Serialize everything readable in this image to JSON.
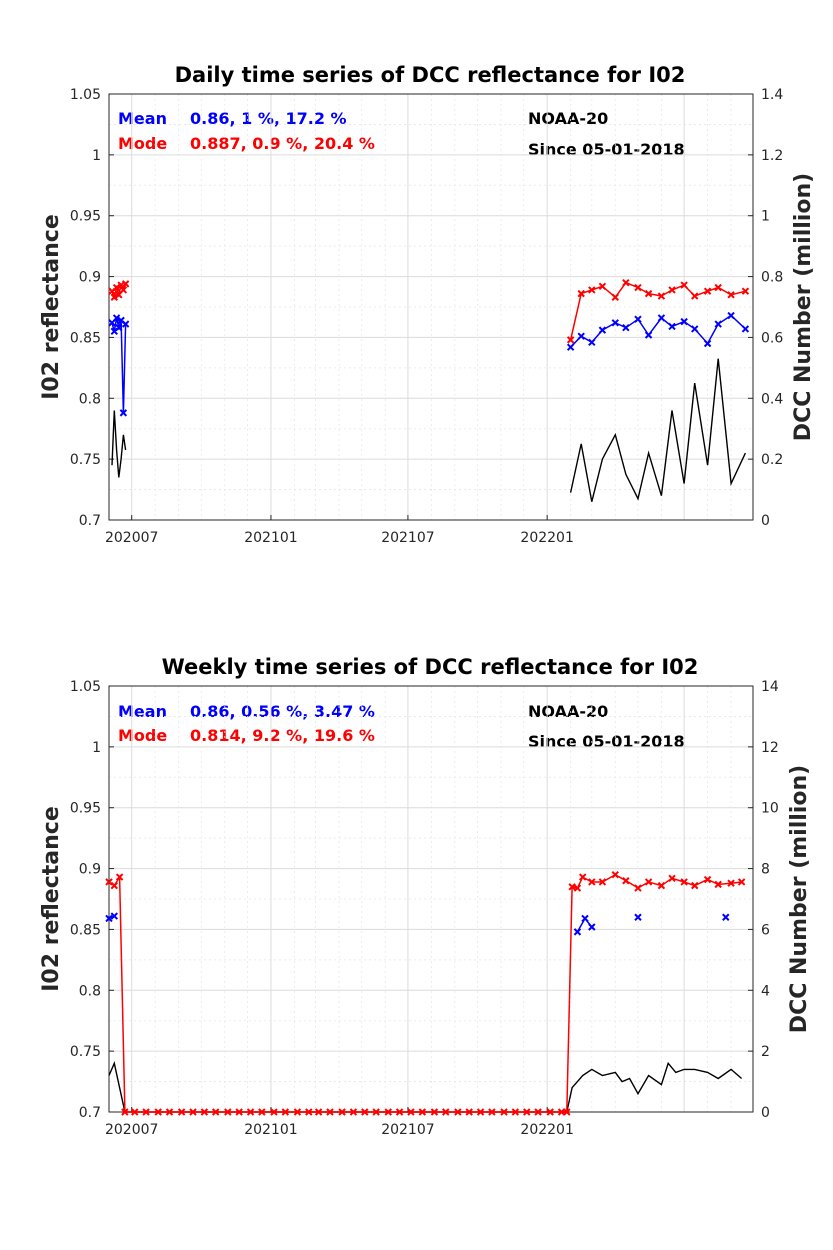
{
  "chart_data": [
    {
      "type": "line",
      "title": "Daily time series of DCC reflectance for I02",
      "xlabel": "",
      "ylabel": "I02 reflectance",
      "y2label": "DCC Number (million)",
      "xticklabels": [
        "202007",
        "202101",
        "202107",
        "202201"
      ],
      "yticklabels": [
        "0.7",
        "0.75",
        "0.8",
        "0.85",
        "0.9",
        "0.95",
        "1",
        "1.05"
      ],
      "y2ticklabels": [
        "0",
        "0.2",
        "0.4",
        "0.6",
        "0.8",
        "1",
        "1.2",
        "1.4"
      ],
      "ylim": [
        0.7,
        1.05
      ],
      "y2lim": [
        0,
        1.4
      ],
      "grid": true,
      "annotations": {
        "mean_label": "Mean",
        "mean_stats": "0.86, 1 %, 17.2 %",
        "mode_label": "Mode",
        "mode_stats": "0.887, 0.9 %, 20.4 %",
        "satellite": "NOAA-20",
        "since": "Since 05-01-2018"
      },
      "colors": {
        "mean": "#0000ff",
        "mode": "#ff0000",
        "count": "#000000"
      },
      "series": [
        {
          "name": "Mode",
          "axis": "left",
          "marker": "x",
          "segments": [
            {
              "x": [
                "2020-06-05",
                "2020-06-08",
                "2020-06-11",
                "2020-06-14",
                "2020-06-17",
                "2020-06-20",
                "2020-06-23"
              ],
              "y": [
                0.888,
                0.883,
                0.891,
                0.885,
                0.893,
                0.889,
                0.894
              ]
            },
            {
              "x": [
                "2022-02-01",
                "2022-02-15",
                "2022-03-01",
                "2022-03-15",
                "2022-04-01",
                "2022-04-15",
                "2022-05-01",
                "2022-05-15",
                "2022-06-01",
                "2022-06-15",
                "2022-07-01",
                "2022-07-15",
                "2022-08-01",
                "2022-08-15",
                "2022-09-01",
                "2022-09-20"
              ],
              "y": [
                0.848,
                0.886,
                0.889,
                0.892,
                0.883,
                0.895,
                0.891,
                0.886,
                0.884,
                0.889,
                0.893,
                0.884,
                0.888,
                0.891,
                0.885,
                0.888
              ]
            }
          ]
        },
        {
          "name": "Mean",
          "axis": "left",
          "marker": "x",
          "segments": [
            {
              "x": [
                "2020-06-05",
                "2020-06-08",
                "2020-06-11",
                "2020-06-14",
                "2020-06-17",
                "2020-06-20",
                "2020-06-23"
              ],
              "y": [
                0.862,
                0.855,
                0.866,
                0.858,
                0.864,
                0.788,
                0.861
              ]
            },
            {
              "x": [
                "2022-02-01",
                "2022-02-15",
                "2022-03-01",
                "2022-03-15",
                "2022-04-01",
                "2022-04-15",
                "2022-05-01",
                "2022-05-15",
                "2022-06-01",
                "2022-06-15",
                "2022-07-01",
                "2022-07-15",
                "2022-08-01",
                "2022-08-15",
                "2022-09-01",
                "2022-09-20"
              ],
              "y": [
                0.842,
                0.851,
                0.846,
                0.856,
                0.862,
                0.858,
                0.865,
                0.852,
                0.866,
                0.859,
                0.863,
                0.857,
                0.845,
                0.861,
                0.868,
                0.857
              ]
            }
          ]
        },
        {
          "name": "DCC Number",
          "axis": "right",
          "segments": [
            {
              "x": [
                "2020-06-05",
                "2020-06-08",
                "2020-06-11",
                "2020-06-14",
                "2020-06-17",
                "2020-06-20",
                "2020-06-23"
              ],
              "y": [
                0.18,
                0.36,
                0.23,
                0.14,
                0.2,
                0.28,
                0.23
              ]
            },
            {
              "x": [
                "2022-02-01",
                "2022-02-15",
                "2022-03-01",
                "2022-03-15",
                "2022-04-01",
                "2022-04-15",
                "2022-05-01",
                "2022-05-15",
                "2022-06-01",
                "2022-06-15",
                "2022-07-01",
                "2022-07-15",
                "2022-08-01",
                "2022-08-15",
                "2022-09-01",
                "2022-09-20"
              ],
              "y": [
                0.09,
                0.25,
                0.06,
                0.2,
                0.28,
                0.15,
                0.07,
                0.22,
                0.08,
                0.36,
                0.12,
                0.45,
                0.18,
                0.53,
                0.12,
                0.22
              ]
            }
          ]
        }
      ]
    },
    {
      "type": "line",
      "title": "Weekly time series of DCC reflectance for I02",
      "xlabel": "",
      "ylabel": "I02 reflectance",
      "y2label": "DCC Number (million)",
      "xticklabels": [
        "202007",
        "202101",
        "202107",
        "202201"
      ],
      "yticklabels": [
        "0.7",
        "0.75",
        "0.8",
        "0.85",
        "0.9",
        "0.95",
        "1",
        "1.05"
      ],
      "y2ticklabels": [
        "0",
        "2",
        "4",
        "6",
        "8",
        "10",
        "12",
        "14"
      ],
      "ylim": [
        0.7,
        1.05
      ],
      "y2lim": [
        0,
        14
      ],
      "grid": true,
      "annotations": {
        "mean_label": "Mean",
        "mean_stats": "0.86, 0.56 %, 3.47 %",
        "mode_label": "Mode",
        "mode_stats": "0.814, 9.2 %, 19.6 %",
        "satellite": "NOAA-20",
        "since": "Since 05-01-2018"
      },
      "colors": {
        "mean": "#0000ff",
        "mode": "#ff0000",
        "count": "#000000"
      },
      "series": [
        {
          "name": "Mode",
          "axis": "left",
          "marker": "x",
          "segments": [
            {
              "x": [
                "2020-06-01",
                "2020-06-08",
                "2020-06-15",
                "2020-06-22",
                "2020-07-05",
                "2020-07-20",
                "2020-08-05",
                "2020-08-20",
                "2020-09-05",
                "2020-09-20",
                "2020-10-05",
                "2020-10-20",
                "2020-11-05",
                "2020-11-20",
                "2020-12-05",
                "2020-12-20",
                "2021-01-05",
                "2021-01-20",
                "2021-02-05",
                "2021-02-20",
                "2021-03-05",
                "2021-03-20",
                "2021-04-05",
                "2021-04-20",
                "2021-05-05",
                "2021-05-20",
                "2021-06-05",
                "2021-06-20",
                "2021-07-05",
                "2021-07-20",
                "2021-08-05",
                "2021-08-20",
                "2021-09-05",
                "2021-09-20",
                "2021-10-05",
                "2021-10-20",
                "2021-11-05",
                "2021-11-20",
                "2021-12-05",
                "2021-12-20",
                "2022-01-05",
                "2022-01-20",
                "2022-01-27",
                "2022-02-03",
                "2022-02-10",
                "2022-02-17",
                "2022-03-01",
                "2022-03-15",
                "2022-04-01",
                "2022-04-15",
                "2022-05-01",
                "2022-05-15",
                "2022-06-01",
                "2022-06-15",
                "2022-07-01",
                "2022-07-15",
                "2022-08-01",
                "2022-08-15",
                "2022-09-01",
                "2022-09-15"
              ],
              "y": [
                0.889,
                0.886,
                0.893,
                0.7,
                0.7,
                0.7,
                0.7,
                0.7,
                0.7,
                0.7,
                0.7,
                0.7,
                0.7,
                0.7,
                0.7,
                0.7,
                0.7,
                0.7,
                0.7,
                0.7,
                0.7,
                0.7,
                0.7,
                0.7,
                0.7,
                0.7,
                0.7,
                0.7,
                0.7,
                0.7,
                0.7,
                0.7,
                0.7,
                0.7,
                0.7,
                0.7,
                0.7,
                0.7,
                0.7,
                0.7,
                0.7,
                0.7,
                0.7,
                0.885,
                0.884,
                0.893,
                0.889,
                0.889,
                0.895,
                0.89,
                0.884,
                0.889,
                0.886,
                0.892,
                0.889,
                0.886,
                0.891,
                0.887,
                0.888,
                0.889
              ]
            }
          ]
        },
        {
          "name": "Mean",
          "axis": "left",
          "marker": "x",
          "segments": [
            {
              "x": [
                "2020-06-01",
                "2020-06-08"
              ],
              "y": [
                0.859,
                0.861
              ]
            },
            {
              "x": [
                "2022-02-10",
                "2022-02-20",
                "2022-03-01"
              ],
              "y": [
                0.848,
                0.859,
                0.852
              ]
            },
            {
              "x": [
                "2022-05-01"
              ],
              "y": [
                0.86
              ]
            },
            {
              "x": [
                "2022-08-25"
              ],
              "y": [
                0.86
              ]
            }
          ]
        },
        {
          "name": "DCC Number",
          "axis": "right",
          "segments": [
            {
              "x": [
                "2020-06-01",
                "2020-06-08",
                "2020-06-15",
                "2020-06-22",
                "2020-07-05",
                "2020-07-20",
                "2020-08-05",
                "2020-08-20",
                "2020-09-05",
                "2020-09-20",
                "2020-10-05",
                "2020-10-20",
                "2020-11-05",
                "2020-11-20",
                "2020-12-05",
                "2020-12-20",
                "2021-01-05",
                "2021-01-20",
                "2021-02-05",
                "2021-02-20",
                "2021-03-05",
                "2021-03-20",
                "2021-04-05",
                "2021-04-20",
                "2021-05-05",
                "2021-05-20",
                "2021-06-05",
                "2021-06-20",
                "2021-07-05",
                "2021-07-20",
                "2021-08-05",
                "2021-08-20",
                "2021-09-05",
                "2021-09-20",
                "2021-10-05",
                "2021-10-20",
                "2021-11-05",
                "2021-11-20",
                "2021-12-05",
                "2021-12-20",
                "2022-01-05",
                "2022-01-20",
                "2022-01-27",
                "2022-02-03",
                "2022-02-17",
                "2022-03-01",
                "2022-03-15",
                "2022-04-01",
                "2022-04-10",
                "2022-04-20",
                "2022-05-01",
                "2022-05-15",
                "2022-06-01",
                "2022-06-10",
                "2022-06-20",
                "2022-07-01",
                "2022-07-15",
                "2022-08-01",
                "2022-08-15",
                "2022-09-01",
                "2022-09-15"
              ],
              "y": [
                1.2,
                1.6,
                0.8,
                0.0,
                0.0,
                0.0,
                0.0,
                0.0,
                0.0,
                0.0,
                0.0,
                0.0,
                0.0,
                0.0,
                0.0,
                0.0,
                0.0,
                0.0,
                0.0,
                0.0,
                0.0,
                0.0,
                0.0,
                0.0,
                0.0,
                0.0,
                0.0,
                0.0,
                0.0,
                0.0,
                0.0,
                0.0,
                0.0,
                0.0,
                0.0,
                0.0,
                0.0,
                0.0,
                0.0,
                0.0,
                0.0,
                0.0,
                0.0,
                0.8,
                1.2,
                1.4,
                1.2,
                1.3,
                1.0,
                1.1,
                0.6,
                1.2,
                0.9,
                1.6,
                1.3,
                1.4,
                1.4,
                1.3,
                1.1,
                1.4,
                1.1
              ]
            }
          ]
        }
      ]
    }
  ]
}
